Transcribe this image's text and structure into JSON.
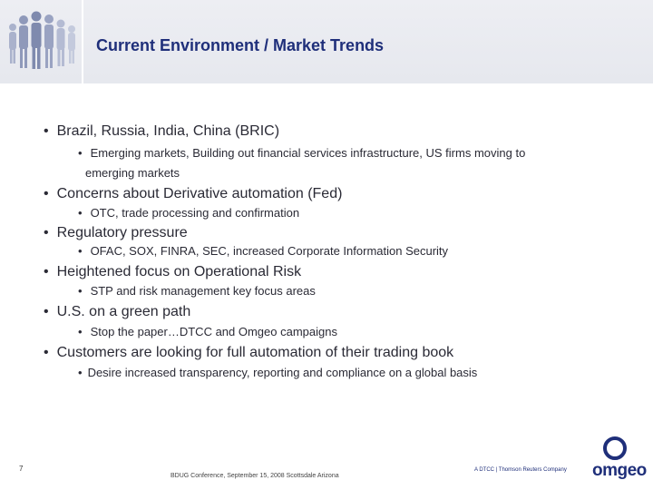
{
  "header": {
    "title": "Current Environment / Market Trends",
    "logo_icon": "people-silhouettes-icon"
  },
  "bullets": [
    {
      "text": "Brazil, Russia, India, China (BRIC)",
      "subs": [
        "Emerging markets, Building out financial services infrastructure, US firms moving to",
        "emerging markets"
      ]
    },
    {
      "text": "Concerns about Derivative automation (Fed)",
      "subs": [
        "OTC, trade processing and confirmation"
      ]
    },
    {
      "text": "Regulatory pressure",
      "subs": [
        "OFAC, SOX, FINRA, SEC,  increased Corporate Information Security"
      ]
    },
    {
      "text": "Heightened focus on Operational Risk",
      "subs": [
        "STP and risk management key focus areas"
      ]
    },
    {
      "text": "U.S. on a green path",
      "subs": [
        "Stop the paper…DTCC and Omgeo campaigns"
      ]
    },
    {
      "text": "Customers are looking for full automation of their trading book",
      "subs": [
        "Desire increased transparency, reporting and compliance on a global basis"
      ]
    }
  ],
  "footer": {
    "page_number": "7",
    "event": "BDUG Conference, September 15, 2008 Scottsdale Arizona",
    "tagline": "A DTCC | Thomson Reuters Company",
    "logo_text": "omgeo",
    "logo_icon": "omgeo-logo-icon"
  },
  "colors": {
    "title": "#1f2f7a",
    "header_band": "#e9eaf0",
    "body_text": "#2a2a35"
  }
}
